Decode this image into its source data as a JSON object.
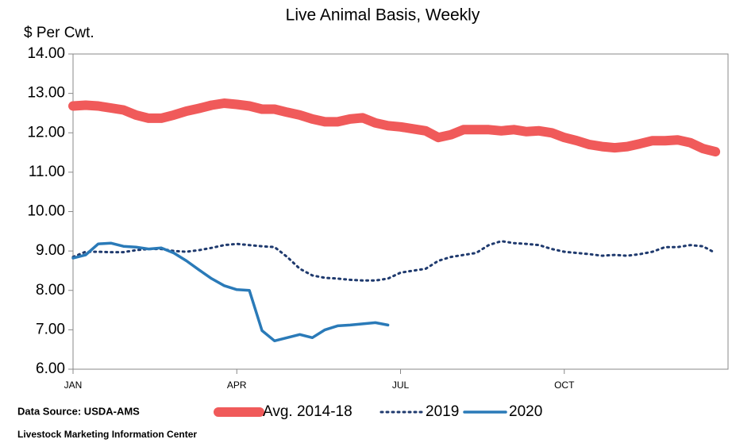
{
  "chart_data": {
    "type": "line",
    "title": "Live Animal Basis, Weekly",
    "y_label": "$ Per Cwt.",
    "source": "Data Source:  USDA-AMS",
    "credit": "Livestock Marketing Information Center",
    "x": [
      1,
      2,
      3,
      4,
      5,
      6,
      7,
      8,
      9,
      10,
      11,
      12,
      13,
      14,
      15,
      16,
      17,
      18,
      19,
      20,
      21,
      22,
      23,
      24,
      25,
      26,
      27,
      28,
      29,
      30,
      31,
      32,
      33,
      34,
      35,
      36,
      37,
      38,
      39,
      40,
      41,
      42,
      43,
      44,
      45,
      46,
      47,
      48,
      49,
      50,
      51,
      52
    ],
    "xlim": [
      1,
      53
    ],
    "xticks": [
      {
        "value": 1,
        "label": "JAN"
      },
      {
        "value": 14,
        "label": "APR"
      },
      {
        "value": 27,
        "label": "JUL"
      },
      {
        "value": 40,
        "label": "OCT"
      }
    ],
    "ylim": [
      6,
      14
    ],
    "yticks": [
      {
        "value": 6,
        "label": "6.00"
      },
      {
        "value": 7,
        "label": "7.00"
      },
      {
        "value": 8,
        "label": "8.00"
      },
      {
        "value": 9,
        "label": "9.00"
      },
      {
        "value": 10,
        "label": "10.00"
      },
      {
        "value": 11,
        "label": "11.00"
      },
      {
        "value": 12,
        "label": "12.00"
      },
      {
        "value": 13,
        "label": "13.00"
      },
      {
        "value": 14,
        "label": "14.00"
      }
    ],
    "grid": false,
    "legend": "bottom",
    "series": [
      {
        "name": "Avg. 2014-18",
        "color": "#f05a5a",
        "width": 12,
        "dash": "none",
        "values": [
          12.68,
          12.7,
          12.68,
          12.63,
          12.58,
          12.45,
          12.37,
          12.37,
          12.45,
          12.55,
          12.62,
          12.7,
          12.75,
          12.72,
          12.68,
          12.6,
          12.6,
          12.52,
          12.45,
          12.35,
          12.28,
          12.28,
          12.35,
          12.38,
          12.25,
          12.18,
          12.15,
          12.1,
          12.05,
          11.88,
          11.95,
          12.08,
          12.08,
          12.08,
          12.05,
          12.08,
          12.03,
          12.05,
          12.0,
          11.88,
          11.8,
          11.7,
          11.65,
          11.62,
          11.65,
          11.72,
          11.8,
          11.8,
          11.82,
          11.75,
          11.6,
          11.52
        ]
      },
      {
        "name": "2019",
        "color": "#1f3a6e",
        "width": 3,
        "dash": "2 5",
        "values": [
          8.85,
          8.98,
          8.98,
          8.97,
          8.97,
          9.02,
          9.05,
          9.05,
          9.0,
          8.98,
          9.02,
          9.08,
          9.15,
          9.18,
          9.15,
          9.12,
          9.1,
          8.85,
          8.55,
          8.38,
          8.32,
          8.3,
          8.27,
          8.25,
          8.25,
          8.3,
          8.45,
          8.5,
          8.55,
          8.75,
          8.85,
          8.9,
          8.95,
          9.15,
          9.25,
          9.2,
          9.18,
          9.15,
          9.05,
          8.98,
          8.95,
          8.92,
          8.88,
          8.9,
          8.88,
          8.92,
          8.98,
          9.1,
          9.1,
          9.15,
          9.12,
          8.95
        ]
      },
      {
        "name": "2020",
        "color": "#2a7ab8",
        "width": 3.5,
        "dash": "none",
        "values": [
          8.82,
          8.9,
          9.18,
          9.2,
          9.12,
          9.1,
          9.05,
          9.08,
          8.95,
          8.75,
          8.52,
          8.3,
          8.12,
          8.02,
          8.0,
          6.98,
          6.72,
          6.8,
          6.88,
          6.8,
          7.0,
          7.1,
          7.12,
          7.15,
          7.18,
          7.12,
          null,
          null,
          null,
          null,
          null,
          null,
          null,
          null,
          null,
          null,
          null,
          null,
          null,
          null,
          null,
          null,
          null,
          null,
          null,
          null,
          null,
          null,
          null,
          null,
          null,
          null
        ]
      }
    ]
  }
}
